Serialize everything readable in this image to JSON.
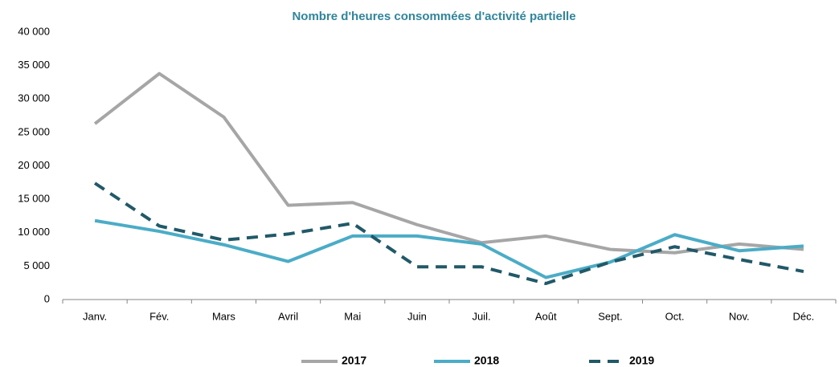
{
  "chart_data": {
    "type": "line",
    "title": "Nombre d'heures consommées d'activité partielle",
    "categories": [
      "Janv.",
      "Fév.",
      "Mars",
      "Avril",
      "Mai",
      "Juin",
      "Juil.",
      "Août",
      "Sept.",
      "Oct.",
      "Nov.",
      "Déc."
    ],
    "series": [
      {
        "name": "2017",
        "color": "#a6a6a6",
        "line_style": "solid",
        "values": [
          26300,
          33800,
          27300,
          14100,
          14500,
          11200,
          8500,
          9500,
          7500,
          7000,
          8300,
          7500
        ]
      },
      {
        "name": "2018",
        "color": "#4bacc6",
        "line_style": "solid",
        "values": [
          11800,
          10200,
          8200,
          5700,
          9500,
          9500,
          8300,
          3300,
          5600,
          9700,
          7300,
          8000
        ]
      },
      {
        "name": "2019",
        "color": "#215968",
        "line_style": "dashed",
        "values": [
          17400,
          11000,
          8900,
          9800,
          11400,
          4900,
          4900,
          2400,
          5600,
          7900,
          6000,
          4200
        ]
      }
    ],
    "ylim": [
      0,
      40000
    ],
    "yticks": [
      0,
      {
        "value": 5000,
        "label": "5 000"
      },
      {
        "value": 10000,
        "label": "10 000"
      },
      {
        "value": 15000,
        "label": "15 000"
      },
      {
        "value": 20000,
        "label": "20 000"
      },
      {
        "value": 25000,
        "label": "25 000"
      },
      {
        "value": 30000,
        "label": "30 000"
      },
      {
        "value": 35000,
        "label": "35 000"
      },
      {
        "value": 40000,
        "label": "40 000"
      }
    ],
    "grid": false,
    "legend": "bottom"
  }
}
